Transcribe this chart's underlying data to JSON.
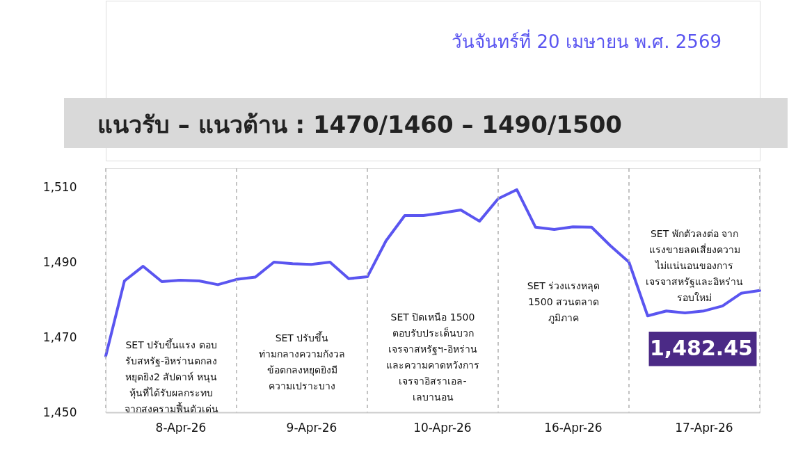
{
  "chart_data": {
    "type": "line",
    "subtitle": "วันจันทร์ที่ 20 เมษายน พ.ศ. 2569",
    "title": "แนวรับ – แนวต้าน : 1470/1460 – 1490/1500",
    "categories": [
      null,
      null,
      null,
      null,
      "8-Apr-26",
      null,
      null,
      null,
      null,
      null,
      null,
      "9-Apr-26",
      null,
      null,
      null,
      null,
      null,
      null,
      "10-Apr-26",
      null,
      null,
      null,
      null,
      null,
      null,
      "16-Apr-26",
      null,
      null,
      null,
      null,
      null,
      null,
      "17-Apr-26",
      null,
      null,
      null
    ],
    "series": [
      {
        "color": "#5a55f0",
        "values": [
          1465,
          1485,
          1488.9,
          1484.8,
          1485.2,
          1485,
          1484,
          1485.4,
          1486,
          1490,
          1489.6,
          1489.4,
          1490,
          1485.6,
          1486.1,
          1495.7,
          1502.4,
          1502.4,
          1503.1,
          1503.9,
          1500.9,
          1506.9,
          1509.3,
          1499.3,
          1498.7,
          1499.4,
          1499.3,
          1494.4,
          1490,
          1475.7,
          1477,
          1476.5,
          1477,
          1478.3,
          1481.7,
          1482.45
        ]
      }
    ],
    "ylim": [
      1450,
      1515
    ],
    "yticks": [
      {
        "value": 1450,
        "label": "1,450"
      },
      {
        "value": 1470,
        "label": "1,470"
      },
      {
        "value": 1490,
        "label": "1,490"
      },
      {
        "value": 1510,
        "label": "1,510"
      }
    ],
    "annotations": [
      "SET ปรับขึ้นแรง ตอบ\nรับสหรัฐ-อิหร่านตกลง\nหยุดยิง2 สัปดาห์ หนุน\nหุ้นที่ได้รับผลกระทบ\nจากสงครามฟื้นตัวเด่น",
      "SET ปรับขึ้น\nท่ามกลางความกังวล\nข้อตกลงหยุดยิงมี\nความเปราะบาง",
      "SET ปิดเหนือ 1500\nตอบรับประเด็นบวก\nเจรจาสหรัฐฯ-อิหร่าน\nและความคาดหวังการ\nเจรจาอิสราเอล-\nเลบานอน",
      "SET ร่วงแรงหลุด\n1500 สวนตลาด\nภูมิภาค",
      "SET พักตัวลงต่อ จาก\nแรงขายลดเสี่ยงความ\nไม่แน่นอนของการ\nเจรจาสหรัฐและอิหร่าน\nรอบใหม่",
      "1,482.45"
    ],
    "grid": "x",
    "marker": "none",
    "line_style": "solid"
  }
}
